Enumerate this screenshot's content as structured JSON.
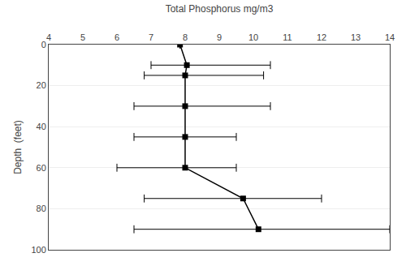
{
  "chart_data": {
    "type": "line",
    "xlabel": "Total Phosphorus mg/m3",
    "ylabel": "Depth  (feet)",
    "x": [
      7.85,
      8.05,
      8.0,
      8.0,
      8.0,
      8.0,
      9.7,
      10.15
    ],
    "values": [
      0,
      10,
      15,
      30,
      45,
      60,
      75,
      90
    ],
    "err_low": [
      7.85,
      7.0,
      6.8,
      6.5,
      6.5,
      6.0,
      6.8,
      6.5
    ],
    "err_high": [
      7.85,
      10.5,
      10.3,
      10.5,
      9.5,
      9.5,
      12.0,
      14.0
    ],
    "xlim": [
      4,
      14
    ],
    "ylim": [
      100,
      0
    ],
    "xticks": [
      4,
      5,
      6,
      7,
      8,
      9,
      10,
      11,
      12,
      13,
      14
    ],
    "yticks": [
      0,
      20,
      40,
      60,
      80,
      100
    ],
    "color": "#000000",
    "marker": "square",
    "grid": "y"
  }
}
